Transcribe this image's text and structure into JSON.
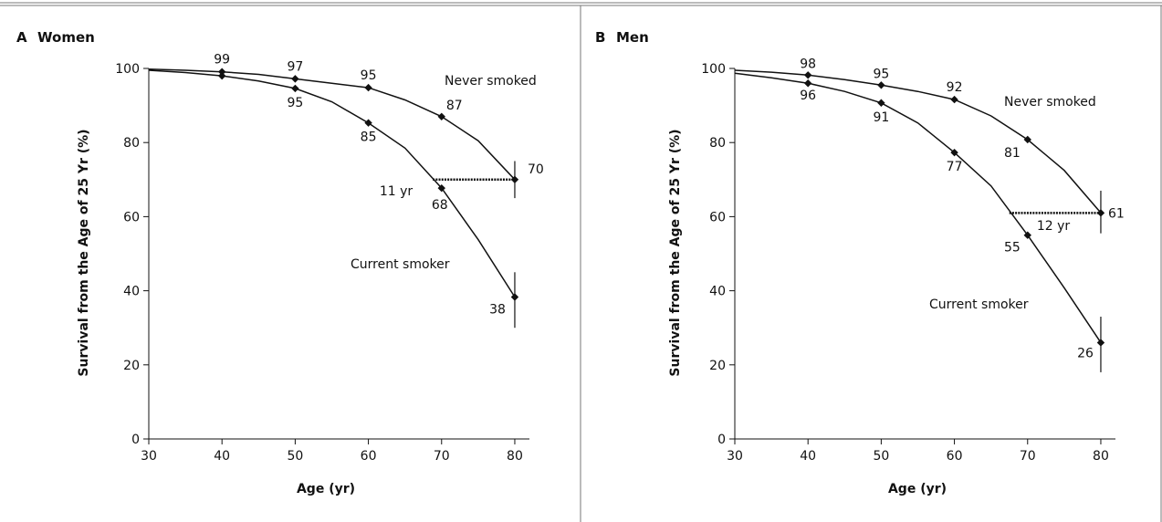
{
  "chart_data": [
    {
      "type": "line",
      "panel": "A",
      "title": "Women",
      "xlabel": "Age (yr)",
      "ylabel": "Survival from the Age of 25 Yr (%)",
      "xlim": [
        30,
        82
      ],
      "ylim": [
        0,
        100
      ],
      "xticks": [
        30,
        40,
        50,
        60,
        70,
        80
      ],
      "yticks": [
        0,
        20,
        40,
        60,
        80,
        100
      ],
      "grid": false,
      "series": [
        {
          "name": "Never smoked",
          "x": [
            30,
            35,
            40,
            45,
            50,
            55,
            60,
            65,
            70,
            75,
            80
          ],
          "y": [
            99.8,
            99.5,
            99.1,
            98.4,
            97.2,
            96.0,
            94.8,
            91.5,
            87.0,
            80.5,
            70.0
          ],
          "markers": [
            {
              "x": 40,
              "y": 99.1,
              "label": "99"
            },
            {
              "x": 50,
              "y": 97.2,
              "label": "97"
            },
            {
              "x": 60,
              "y": 94.8,
              "label": "95"
            },
            {
              "x": 70,
              "y": 87.0,
              "label": "87"
            },
            {
              "x": 80,
              "y": 70.0,
              "label": "70"
            }
          ],
          "error_bar": {
            "x": 80,
            "low": 65,
            "high": 75
          }
        },
        {
          "name": "Current smoker",
          "x": [
            30,
            35,
            40,
            45,
            50,
            55,
            60,
            65,
            70,
            75,
            80
          ],
          "y": [
            99.5,
            98.9,
            98.0,
            96.6,
            94.6,
            91.0,
            85.3,
            78.5,
            67.7,
            53.8,
            38.3
          ],
          "markers": [
            {
              "x": 40,
              "y": 98.0,
              "label": ""
            },
            {
              "x": 50,
              "y": 94.6,
              "label": "95"
            },
            {
              "x": 60,
              "y": 85.3,
              "label": "85"
            },
            {
              "x": 70,
              "y": 67.7,
              "label": "68"
            },
            {
              "x": 80,
              "y": 38.3,
              "label": "38"
            }
          ],
          "error_bar": {
            "x": 80,
            "low": 30,
            "high": 45
          }
        }
      ],
      "gap": {
        "y": 70,
        "x_start": 68.8,
        "x_end": 80,
        "label": "11 yr"
      }
    },
    {
      "type": "line",
      "panel": "B",
      "title": "Men",
      "xlabel": "Age (yr)",
      "ylabel": "Survival from the Age of 25 Yr (%)",
      "xlim": [
        30,
        82
      ],
      "ylim": [
        0,
        100
      ],
      "xticks": [
        30,
        40,
        50,
        60,
        70,
        80
      ],
      "yticks": [
        0,
        20,
        40,
        60,
        80,
        100
      ],
      "grid": false,
      "series": [
        {
          "name": "Never smoked",
          "x": [
            30,
            35,
            40,
            45,
            50,
            55,
            60,
            65,
            70,
            75,
            80
          ],
          "y": [
            99.5,
            99.0,
            98.2,
            97.0,
            95.5,
            93.8,
            91.6,
            87.2,
            80.8,
            72.5,
            61.0
          ],
          "markers": [
            {
              "x": 40,
              "y": 98.2,
              "label": "98"
            },
            {
              "x": 50,
              "y": 95.5,
              "label": "95"
            },
            {
              "x": 60,
              "y": 91.6,
              "label": "92"
            },
            {
              "x": 70,
              "y": 80.8,
              "label": "81"
            },
            {
              "x": 80,
              "y": 61.0,
              "label": "61"
            }
          ],
          "error_bar": {
            "x": 80,
            "low": 55.5,
            "high": 67
          }
        },
        {
          "name": "Current smoker",
          "x": [
            30,
            35,
            40,
            45,
            50,
            55,
            60,
            65,
            70,
            75,
            80
          ],
          "y": [
            98.7,
            97.5,
            96.0,
            93.8,
            90.7,
            85.3,
            77.3,
            68.3,
            55.0,
            40.8,
            26.0
          ],
          "markers": [
            {
              "x": 40,
              "y": 96.0,
              "label": "96"
            },
            {
              "x": 50,
              "y": 90.7,
              "label": "91"
            },
            {
              "x": 60,
              "y": 77.3,
              "label": "77"
            },
            {
              "x": 70,
              "y": 55.0,
              "label": "55"
            },
            {
              "x": 80,
              "y": 26.0,
              "label": "26"
            }
          ],
          "error_bar": {
            "x": 80,
            "low": 18,
            "high": 33
          }
        }
      ],
      "gap": {
        "y": 61,
        "x_start": 67.5,
        "x_end": 80,
        "label": "12 yr"
      }
    }
  ]
}
